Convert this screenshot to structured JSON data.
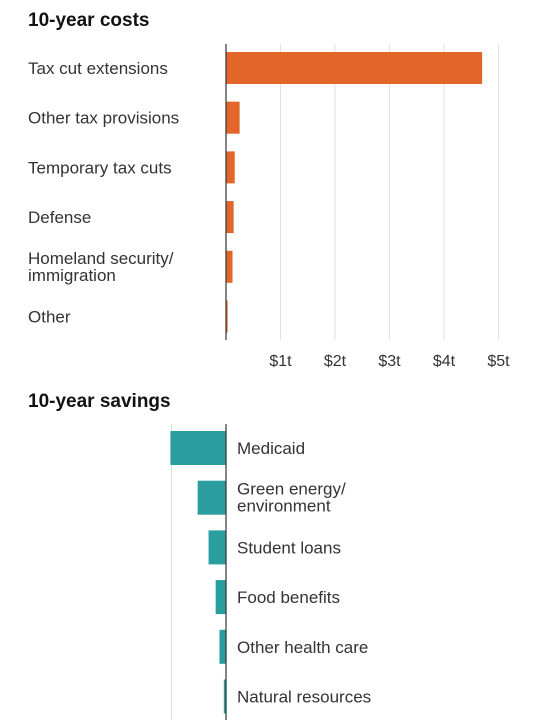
{
  "chart_data": [
    {
      "type": "bar",
      "orientation": "horizontal",
      "title": "10-year costs",
      "categories": [
        "Tax cut extensions",
        "Other tax provisions",
        "Temporary tax cuts",
        "Defense",
        "Homeland security/ immigration",
        "Other"
      ],
      "values": [
        4.7,
        0.25,
        0.16,
        0.14,
        0.12,
        0.03
      ],
      "unit": "trillion dollars",
      "xlim": [
        0,
        5.2
      ],
      "x_ticks": [
        1,
        2,
        3,
        4,
        5
      ],
      "x_tick_labels": [
        "$1t",
        "$2t",
        "$3t",
        "$4t",
        "$5t"
      ],
      "grid": true,
      "color": "#e26629"
    },
    {
      "type": "bar",
      "orientation": "horizontal",
      "title": "10-year savings",
      "categories": [
        "Medicaid",
        "Green energy/ environment",
        "Student loans",
        "Food benefits",
        "Other health care",
        "Natural resources"
      ],
      "values": [
        -1.02,
        -0.52,
        -0.32,
        -0.19,
        -0.12,
        -0.04
      ],
      "unit": "trillion dollars",
      "grid": true,
      "color": "#2a9d9f"
    }
  ]
}
